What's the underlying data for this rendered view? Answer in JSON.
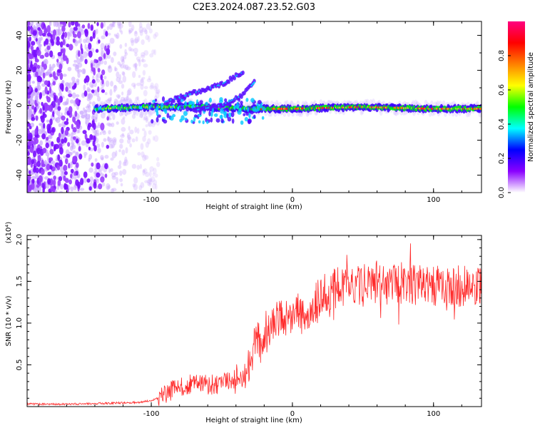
{
  "title": "C2E3.2024.087.23.52.G03",
  "chart_data": [
    {
      "type": "heatmap",
      "xlabel": "Height of straight line (km)",
      "ylabel": "Frequency (Hz)",
      "xlim": [
        -188,
        134
      ],
      "ylim": [
        -50,
        48
      ],
      "xticks": [
        -100,
        0,
        100
      ],
      "xtick_labels": [
        "-100",
        "0",
        "100"
      ],
      "yticks": [
        -40,
        -20,
        0,
        20,
        40
      ],
      "ytick_labels": [
        "-40",
        "-20",
        "0",
        "20",
        "40"
      ],
      "colorbar": {
        "label": "Normalized spectral amplitude",
        "range": [
          0,
          1
        ],
        "ticks": [
          0.0,
          0.2,
          0.4,
          0.6,
          0.8
        ],
        "tick_labels": [
          "0.0",
          "0.2",
          "0.4",
          "0.6",
          "0.8"
        ],
        "colors": [
          "#ffffff",
          "#8a00ff",
          "#0000ff",
          "#00ffff",
          "#00ff00",
          "#ffff00",
          "#ff8000",
          "#ff0000",
          "#ff0080"
        ]
      },
      "features": {
        "noise_region_x": [
          -188,
          -100
        ],
        "trace": [
          {
            "x": -140,
            "y": -2
          },
          {
            "x": -100,
            "y": -1
          },
          {
            "x": -60,
            "y": -1
          },
          {
            "x": -30,
            "y": -2
          },
          {
            "x": 0,
            "y": -2
          },
          {
            "x": 50,
            "y": -1
          },
          {
            "x": 100,
            "y": -2
          },
          {
            "x": 134,
            "y": -2
          }
        ],
        "upper_branch": [
          {
            "x": -90,
            "y": 2
          },
          {
            "x": -70,
            "y": 7
          },
          {
            "x": -50,
            "y": 12
          },
          {
            "x": -35,
            "y": 19
          }
        ],
        "lower_branch": [
          {
            "x": -70,
            "y": -3
          },
          {
            "x": -50,
            "y": 0
          },
          {
            "x": -35,
            "y": 6
          },
          {
            "x": -27,
            "y": 13
          }
        ]
      }
    },
    {
      "type": "line",
      "xlabel": "Height of straight line (km)",
      "ylabel": "SNR (10 * v/v)",
      "scale_label": "(x10⁴)",
      "xlim": [
        -188,
        134
      ],
      "ylim": [
        0,
        2.05
      ],
      "xticks": [
        -100,
        0,
        100
      ],
      "xtick_labels": [
        "-100",
        "0",
        "100"
      ],
      "yticks": [
        0.5,
        1.0,
        1.5,
        2.0
      ],
      "ytick_labels": [
        "0.5",
        "1.0",
        "1.5",
        "2.0"
      ],
      "series": [
        {
          "color": "#ff2a2a",
          "points": [
            [
              -188,
              0.03
            ],
            [
              -160,
              0.03
            ],
            [
              -130,
              0.04
            ],
            [
              -110,
              0.05
            ],
            [
              -100,
              0.07
            ],
            [
              -92,
              0.12
            ],
            [
              -85,
              0.2
            ],
            [
              -78,
              0.24
            ],
            [
              -70,
              0.28
            ],
            [
              -65,
              0.3
            ],
            [
              -60,
              0.26
            ],
            [
              -50,
              0.27
            ],
            [
              -45,
              0.3
            ],
            [
              -40,
              0.33
            ],
            [
              -35,
              0.36
            ],
            [
              -30,
              0.5
            ],
            [
              -27,
              0.75
            ],
            [
              -25,
              0.85
            ],
            [
              -22,
              0.72
            ],
            [
              -18,
              0.85
            ],
            [
              -15,
              1.0
            ],
            [
              -10,
              1.05
            ],
            [
              -5,
              1.05
            ],
            [
              0,
              1.1
            ],
            [
              5,
              1.1
            ],
            [
              10,
              1.05
            ],
            [
              15,
              1.2
            ],
            [
              20,
              1.3
            ],
            [
              25,
              1.38
            ],
            [
              30,
              1.4
            ],
            [
              40,
              1.45
            ],
            [
              50,
              1.45
            ],
            [
              60,
              1.5
            ],
            [
              70,
              1.45
            ],
            [
              80,
              1.5
            ],
            [
              90,
              1.45
            ],
            [
              100,
              1.45
            ],
            [
              110,
              1.4
            ],
            [
              120,
              1.45
            ],
            [
              134,
              1.4
            ]
          ]
        }
      ]
    }
  ]
}
